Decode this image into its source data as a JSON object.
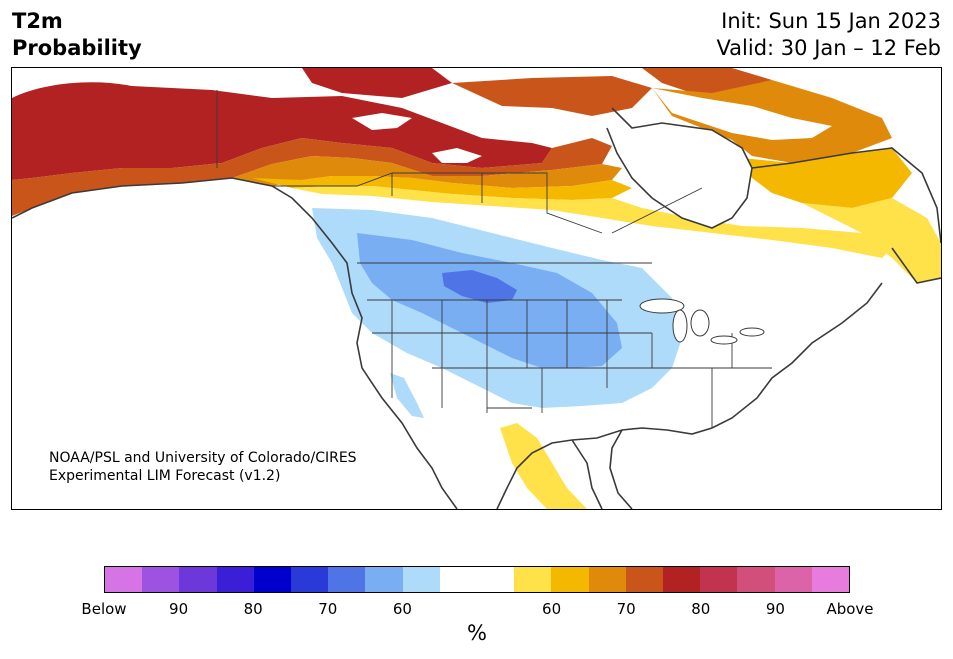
{
  "header": {
    "variable": "T2m",
    "quantity": "Probability",
    "init": "Init: Sun 15 Jan 2023",
    "valid": "Valid: 30 Jan – 12 Feb"
  },
  "credit": {
    "line1": "NOAA/PSL and University of Colorado/CIRES",
    "line2": "Experimental LIM Forecast (v1.2)"
  },
  "colorbar": {
    "colors": [
      "#d674e6",
      "#9e52e2",
      "#6c38da",
      "#3a1fd6",
      "#0000cc",
      "#2a3ad8",
      "#4f74e6",
      "#79aef2",
      "#aedbfa",
      "#ffffff",
      "#ffffff",
      "#ffe14a",
      "#f4b800",
      "#e08a0c",
      "#c9551a",
      "#b22222",
      "#c23350",
      "#d14f7a",
      "#dc63a8",
      "#e87bde"
    ],
    "labels": [
      "Below",
      "90",
      "80",
      "70",
      "60",
      "60",
      "70",
      "80",
      "90",
      "Above"
    ],
    "unit": "%"
  },
  "legend": {
    "below_categories": [
      "Below",
      "90",
      "80",
      "70",
      "60"
    ],
    "above_categories": [
      "60",
      "70",
      "80",
      "90",
      "Above"
    ]
  }
}
